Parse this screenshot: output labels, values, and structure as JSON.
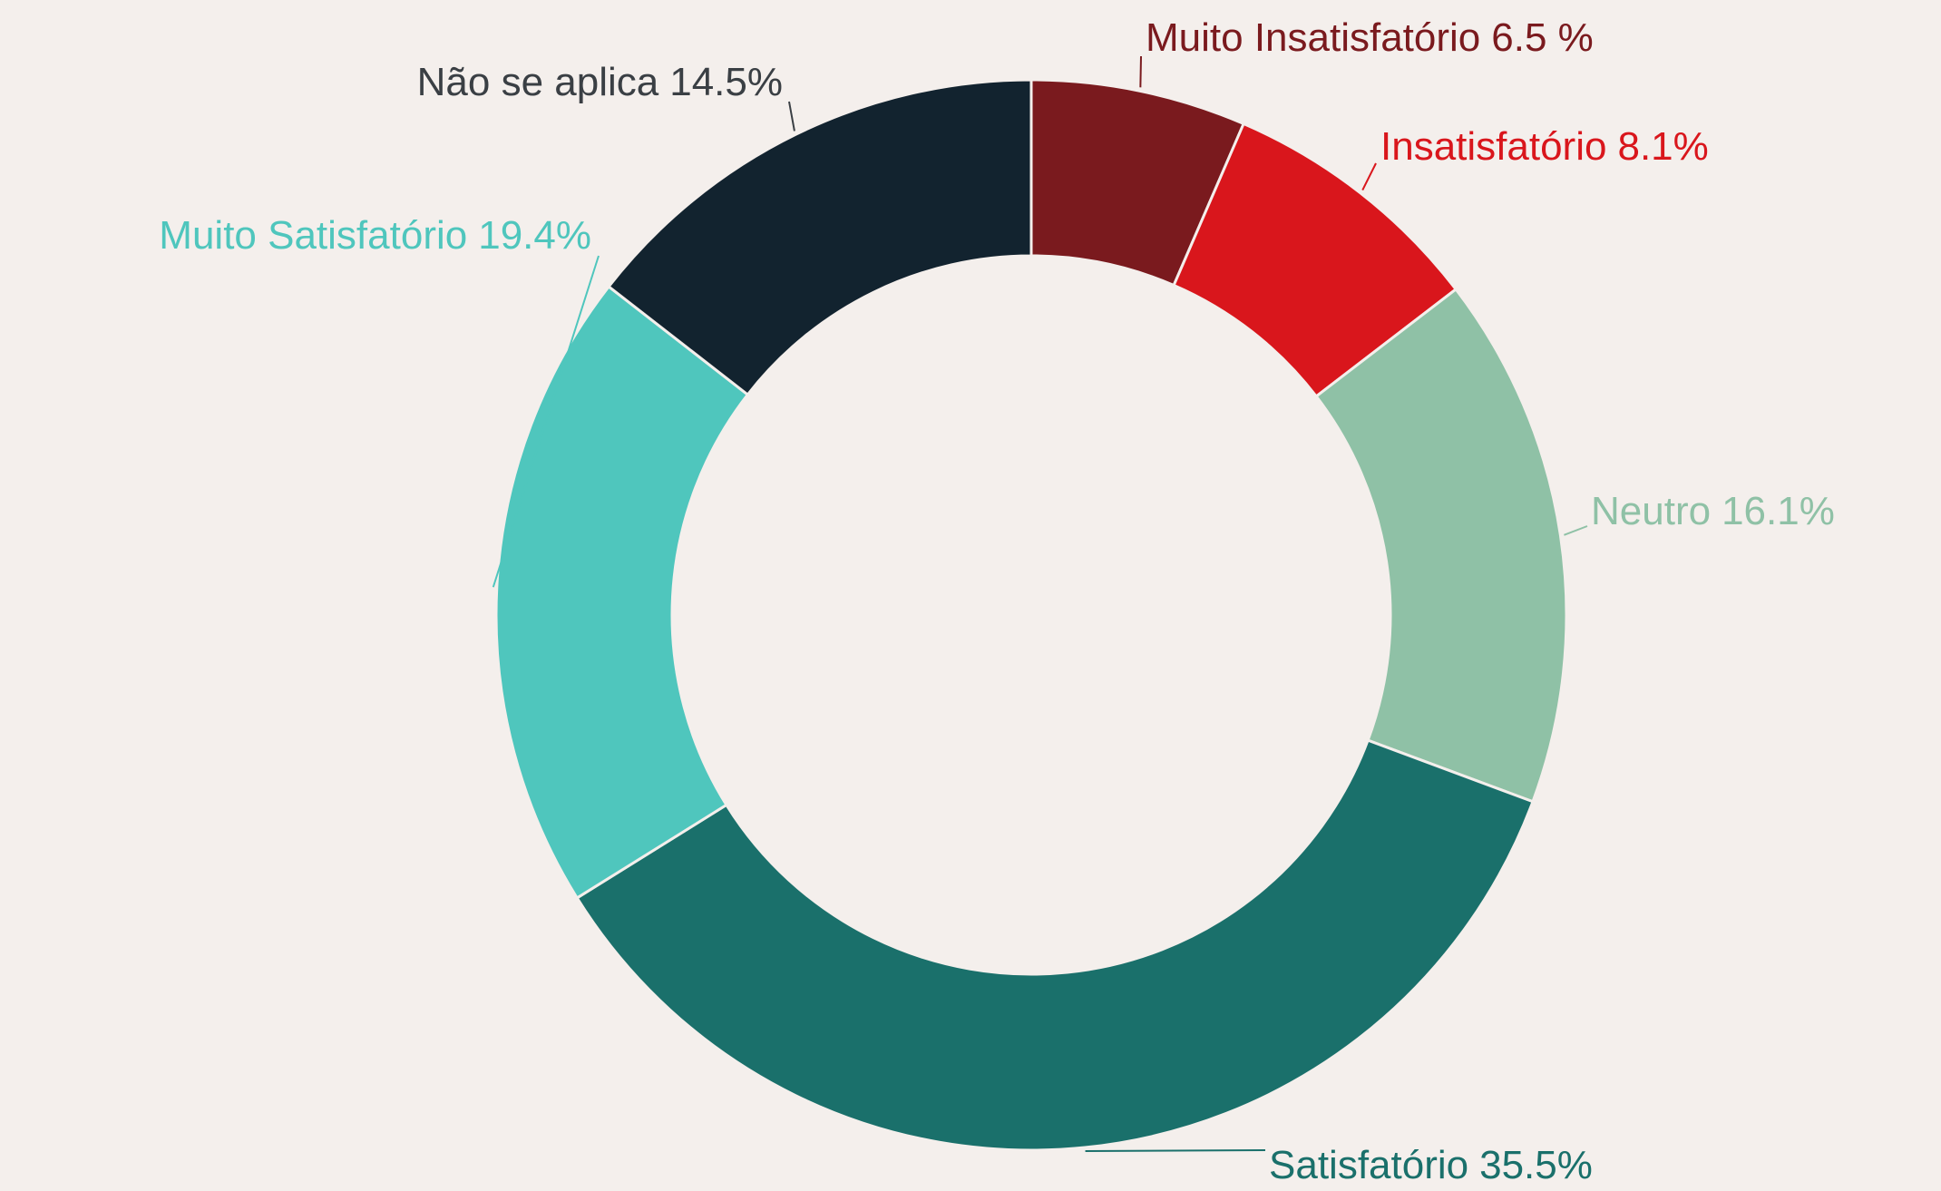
{
  "chart_data": {
    "type": "donut",
    "categories": [
      "Muito Insatisfatório",
      "Insatisfatório",
      "Neutro",
      "Satisfatório",
      "Muito Satisfatório",
      "Não se aplica"
    ],
    "values": [
      6.5,
      8.1,
      16.1,
      35.5,
      19.4,
      14.5
    ],
    "value_labels": [
      "6.5 %",
      "8.1%",
      "16.1%",
      "35.5%",
      "19.4%",
      "14.5%"
    ],
    "colors": [
      "#7a1a1e",
      "#d9161c",
      "#8fc1a6",
      "#1a706b",
      "#4fc6bd",
      "#12232f"
    ],
    "label_colors": [
      "#7a1a1e",
      "#d9161c",
      "#8fc1a6",
      "#1a706b",
      "#4fc6bd",
      "#3a3f44"
    ]
  }
}
